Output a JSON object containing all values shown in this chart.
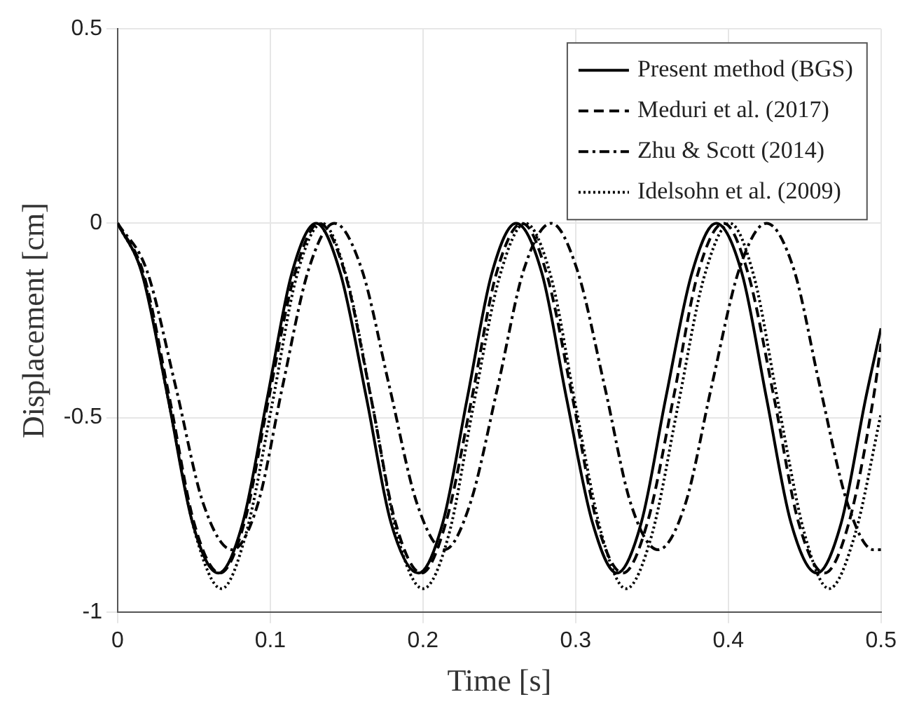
{
  "chart_data": {
    "type": "line",
    "xlabel": "Time [s]",
    "ylabel": "Displacement [cm]",
    "xlim": [
      0,
      0.5
    ],
    "xticks": [
      0,
      0.1,
      0.2,
      0.3,
      0.4,
      0.5
    ],
    "ylim": [
      -1,
      0.5
    ],
    "yticks": [
      -1,
      -0.5,
      0,
      0.5
    ],
    "grid": true,
    "legend": "top right",
    "marker": "none",
    "series": [
      {
        "name": "Present method (BGS)",
        "color": "#000000",
        "line_style": "solid",
        "x": [
          0,
          0.016,
          0.033,
          0.049,
          0.066,
          0.082,
          0.098,
          0.114,
          0.13,
          0.146,
          0.163,
          0.179,
          0.197,
          0.213,
          0.229,
          0.245,
          0.261,
          0.278,
          0.294,
          0.311,
          0.327,
          0.343,
          0.359,
          0.376,
          0.392,
          0.409,
          0.425,
          0.441,
          0.458,
          0.474,
          0.49,
          0.5
        ],
        "values": [
          0,
          -0.13,
          -0.45,
          -0.77,
          -0.9,
          -0.77,
          -0.45,
          -0.13,
          0,
          -0.13,
          -0.45,
          -0.77,
          -0.9,
          -0.77,
          -0.45,
          -0.13,
          0,
          -0.13,
          -0.45,
          -0.77,
          -0.9,
          -0.77,
          -0.45,
          -0.13,
          0,
          -0.13,
          -0.45,
          -0.77,
          -0.9,
          -0.77,
          -0.45,
          -0.27
        ]
      },
      {
        "name": "Meduri et al. (2017)",
        "color": "#000000",
        "line_style": "dashed",
        "x": [
          0,
          0.017,
          0.034,
          0.05,
          0.067,
          0.083,
          0.099,
          0.116,
          0.132,
          0.149,
          0.166,
          0.182,
          0.199,
          0.215,
          0.232,
          0.248,
          0.265,
          0.281,
          0.298,
          0.314,
          0.331,
          0.347,
          0.364,
          0.38,
          0.397,
          0.413,
          0.43,
          0.446,
          0.463,
          0.479,
          0.495,
          0.5
        ],
        "values": [
          0,
          -0.13,
          -0.45,
          -0.77,
          -0.9,
          -0.77,
          -0.45,
          -0.13,
          0,
          -0.13,
          -0.45,
          -0.77,
          -0.9,
          -0.77,
          -0.45,
          -0.13,
          0,
          -0.13,
          -0.45,
          -0.77,
          -0.9,
          -0.77,
          -0.45,
          -0.13,
          0,
          -0.13,
          -0.45,
          -0.77,
          -0.9,
          -0.77,
          -0.45,
          -0.31
        ]
      },
      {
        "name": "Zhu & Scott (2014)",
        "color": "#000000",
        "line_style": "dashdot",
        "x": [
          0,
          0.019,
          0.038,
          0.056,
          0.075,
          0.092,
          0.108,
          0.125,
          0.142,
          0.16,
          0.178,
          0.196,
          0.214,
          0.231,
          0.249,
          0.266,
          0.284,
          0.301,
          0.319,
          0.336,
          0.354,
          0.372,
          0.389,
          0.407,
          0.425,
          0.443,
          0.46,
          0.478,
          0.495,
          0.5
        ],
        "values": [
          0,
          -0.12,
          -0.42,
          -0.72,
          -0.84,
          -0.72,
          -0.42,
          -0.12,
          0,
          -0.12,
          -0.42,
          -0.72,
          -0.84,
          -0.72,
          -0.42,
          -0.12,
          0,
          -0.12,
          -0.42,
          -0.72,
          -0.84,
          -0.72,
          -0.42,
          -0.12,
          0,
          -0.12,
          -0.42,
          -0.72,
          -0.84,
          -0.84
        ]
      },
      {
        "name": "Idelsohn et al. (2009)",
        "color": "#000000",
        "line_style": "dotted",
        "x": [
          0,
          0.017,
          0.034,
          0.051,
          0.068,
          0.084,
          0.101,
          0.117,
          0.134,
          0.15,
          0.167,
          0.183,
          0.2,
          0.217,
          0.233,
          0.25,
          0.267,
          0.284,
          0.3,
          0.317,
          0.333,
          0.35,
          0.367,
          0.384,
          0.401,
          0.417,
          0.433,
          0.45,
          0.466,
          0.483,
          0.5
        ],
        "values": [
          0,
          -0.14,
          -0.47,
          -0.8,
          -0.94,
          -0.8,
          -0.47,
          -0.14,
          0,
          -0.14,
          -0.47,
          -0.8,
          -0.94,
          -0.8,
          -0.47,
          -0.14,
          0,
          -0.14,
          -0.47,
          -0.8,
          -0.94,
          -0.8,
          -0.47,
          -0.14,
          0,
          -0.14,
          -0.47,
          -0.8,
          -0.94,
          -0.8,
          -0.49
        ]
      }
    ]
  }
}
